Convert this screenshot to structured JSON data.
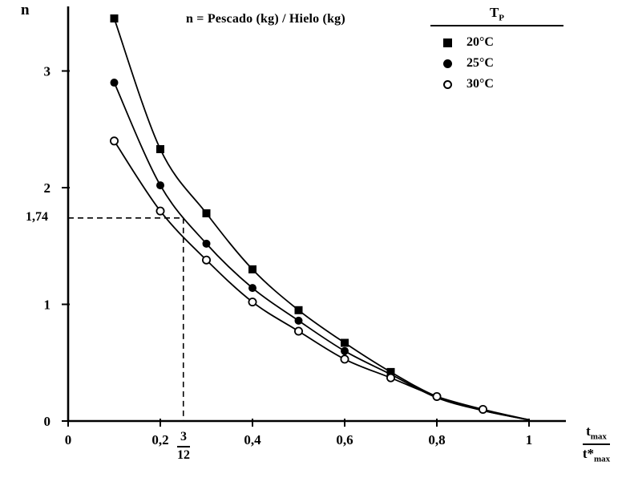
{
  "chart_data": {
    "type": "line",
    "title": "n = Pescado (kg) / Hielo (kg)",
    "ylabel": "n",
    "xlabel": "t max / t* max",
    "xlabel_fraction": {
      "numerator_main": "t",
      "numerator_sub": "max",
      "denominator_main": "t*",
      "denominator_sub": "max"
    },
    "xlim": [
      0,
      1.08
    ],
    "ylim": [
      0,
      3.6
    ],
    "x_tick_values": [
      0,
      0.2,
      0.4,
      0.6,
      0.8,
      1
    ],
    "x_tick_labels": [
      "0",
      "0,2",
      "0,4",
      "0,6",
      "0,8",
      "1"
    ],
    "y_tick_values": [
      0,
      1,
      2,
      3
    ],
    "y_tick_labels": [
      "0",
      "1",
      "2",
      "3"
    ],
    "grid": false,
    "legend": {
      "title_main": "T",
      "title_sub": "P",
      "position": "top-right",
      "entries": [
        "20°C",
        "25°C",
        "30°C"
      ]
    },
    "series": [
      {
        "name": "20°C",
        "marker": "filled-square",
        "color": "#000000",
        "x": [
          0.1,
          0.2,
          0.3,
          0.4,
          0.5,
          0.6,
          0.7
        ],
        "y": [
          3.45,
          2.33,
          1.78,
          1.3,
          0.95,
          0.67,
          0.42
        ],
        "line_extra_x": [
          0.8,
          0.9,
          1.0
        ],
        "line_extra_y": [
          0.21,
          0.09,
          0.01
        ]
      },
      {
        "name": "25°C",
        "marker": "filled-circle",
        "color": "#000000",
        "x": [
          0.1,
          0.2,
          0.3,
          0.4,
          0.5,
          0.6,
          0.7
        ],
        "y": [
          2.9,
          2.02,
          1.52,
          1.14,
          0.86,
          0.6,
          0.4
        ],
        "line_extra_x": [
          0.8,
          0.9,
          1.0
        ],
        "line_extra_y": [
          0.2,
          0.09,
          0.01
        ]
      },
      {
        "name": "30°C",
        "marker": "open-circle",
        "color": "#000000",
        "x": [
          0.1,
          0.2,
          0.3,
          0.4,
          0.5,
          0.6,
          0.7,
          0.8,
          0.9
        ],
        "y": [
          2.4,
          1.8,
          1.38,
          1.02,
          0.77,
          0.53,
          0.37,
          0.21,
          0.1
        ],
        "line_extra_x": [
          1.0
        ],
        "line_extra_y": [
          0.01
        ]
      }
    ],
    "annotation": {
      "y_value": 1.74,
      "y_label": "1,74",
      "x_value": 0.25,
      "x_label_numerator": "3",
      "x_label_denominator": "12"
    },
    "colors": {
      "axis": "#000000",
      "background": "#ffffff"
    }
  }
}
